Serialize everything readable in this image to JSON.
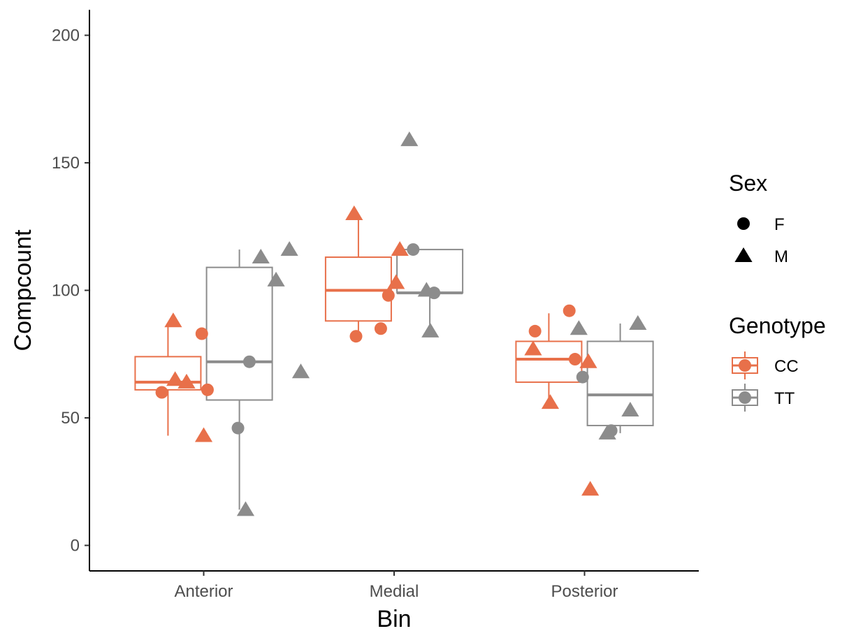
{
  "chart_data": {
    "type": "box",
    "title": "",
    "xlabel": "Bin",
    "ylabel": "Compcount",
    "categories": [
      "Anterior",
      "Medial",
      "Posterior"
    ],
    "ylim": [
      -10,
      210
    ],
    "yticks": [
      0,
      50,
      100,
      150,
      200
    ],
    "grid": false,
    "legend_position": "right",
    "colors": {
      "CC": "#E8704A",
      "TT": "#8C8C8C"
    },
    "legends": [
      {
        "title": "Sex",
        "entries": [
          {
            "label": "F",
            "shape": "circle"
          },
          {
            "label": "M",
            "shape": "triangle"
          }
        ]
      },
      {
        "title": "Genotype",
        "entries": [
          {
            "label": "CC",
            "group": "CC"
          },
          {
            "label": "TT",
            "group": "TT"
          }
        ]
      }
    ],
    "boxes": [
      {
        "category": "Anterior",
        "genotype": "CC",
        "whisker_low": 43,
        "q1": 61,
        "median": 64,
        "q3": 74,
        "whisker_high": 87
      },
      {
        "category": "Anterior",
        "genotype": "TT",
        "whisker_low": 14,
        "q1": 57,
        "median": 72,
        "q3": 109,
        "whisker_high": 116
      },
      {
        "category": "Medial",
        "genotype": "CC",
        "whisker_low": 83,
        "q1": 88,
        "median": 100,
        "q3": 113,
        "whisker_high": 129
      },
      {
        "category": "Medial",
        "genotype": "TT",
        "whisker_low": 84,
        "q1": 99,
        "median": 99,
        "q3": 116,
        "whisker_high": 116
      },
      {
        "category": "Posterior",
        "genotype": "CC",
        "whisker_low": 56,
        "q1": 64,
        "median": 73,
        "q3": 80,
        "whisker_high": 91
      },
      {
        "category": "Posterior",
        "genotype": "TT",
        "whisker_low": 44,
        "q1": 47,
        "median": 59,
        "q3": 80,
        "whisker_high": 87
      }
    ],
    "points": [
      {
        "category": "Anterior",
        "genotype": "CC",
        "sex": "M",
        "x": 0.84,
        "y": 88
      },
      {
        "category": "Anterior",
        "genotype": "CC",
        "sex": "F",
        "x": 0.99,
        "y": 83
      },
      {
        "category": "Anterior",
        "genotype": "CC",
        "sex": "M",
        "x": 0.85,
        "y": 65
      },
      {
        "category": "Anterior",
        "genotype": "CC",
        "sex": "M",
        "x": 0.91,
        "y": 64
      },
      {
        "category": "Anterior",
        "genotype": "CC",
        "sex": "F",
        "x": 0.78,
        "y": 60
      },
      {
        "category": "Anterior",
        "genotype": "CC",
        "sex": "F",
        "x": 1.02,
        "y": 61
      },
      {
        "category": "Anterior",
        "genotype": "CC",
        "sex": "M",
        "x": 1.0,
        "y": 43
      },
      {
        "category": "Anterior",
        "genotype": "TT",
        "sex": "M",
        "x": 1.3,
        "y": 113
      },
      {
        "category": "Anterior",
        "genotype": "TT",
        "sex": "M",
        "x": 1.45,
        "y": 116
      },
      {
        "category": "Anterior",
        "genotype": "TT",
        "sex": "M",
        "x": 1.38,
        "y": 104
      },
      {
        "category": "Anterior",
        "genotype": "TT",
        "sex": "F",
        "x": 1.24,
        "y": 72
      },
      {
        "category": "Anterior",
        "genotype": "TT",
        "sex": "M",
        "x": 1.51,
        "y": 68
      },
      {
        "category": "Anterior",
        "genotype": "TT",
        "sex": "F",
        "x": 1.18,
        "y": 46
      },
      {
        "category": "Anterior",
        "genotype": "TT",
        "sex": "M",
        "x": 1.22,
        "y": 14
      },
      {
        "category": "Medial",
        "genotype": "CC",
        "sex": "M",
        "x": 1.79,
        "y": 130
      },
      {
        "category": "Medial",
        "genotype": "CC",
        "sex": "M",
        "x": 2.03,
        "y": 116
      },
      {
        "category": "Medial",
        "genotype": "CC",
        "sex": "M",
        "x": 2.01,
        "y": 103
      },
      {
        "category": "Medial",
        "genotype": "CC",
        "sex": "F",
        "x": 1.97,
        "y": 98
      },
      {
        "category": "Medial",
        "genotype": "CC",
        "sex": "F",
        "x": 1.93,
        "y": 85
      },
      {
        "category": "Medial",
        "genotype": "CC",
        "sex": "F",
        "x": 1.8,
        "y": 82
      },
      {
        "category": "Medial",
        "genotype": "TT",
        "sex": "M",
        "x": 2.08,
        "y": 159
      },
      {
        "category": "Medial",
        "genotype": "TT",
        "sex": "F",
        "x": 2.1,
        "y": 116
      },
      {
        "category": "Medial",
        "genotype": "TT",
        "sex": "M",
        "x": 2.17,
        "y": 100
      },
      {
        "category": "Medial",
        "genotype": "TT",
        "sex": "F",
        "x": 2.21,
        "y": 99
      },
      {
        "category": "Medial",
        "genotype": "TT",
        "sex": "M",
        "x": 2.19,
        "y": 84
      },
      {
        "category": "Posterior",
        "genotype": "CC",
        "sex": "F",
        "x": 2.92,
        "y": 92
      },
      {
        "category": "Posterior",
        "genotype": "CC",
        "sex": "F",
        "x": 2.74,
        "y": 84
      },
      {
        "category": "Posterior",
        "genotype": "CC",
        "sex": "M",
        "x": 2.73,
        "y": 77
      },
      {
        "category": "Posterior",
        "genotype": "CC",
        "sex": "F",
        "x": 2.95,
        "y": 73
      },
      {
        "category": "Posterior",
        "genotype": "CC",
        "sex": "M",
        "x": 3.02,
        "y": 72
      },
      {
        "category": "Posterior",
        "genotype": "CC",
        "sex": "M",
        "x": 2.82,
        "y": 56
      },
      {
        "category": "Posterior",
        "genotype": "CC",
        "sex": "M",
        "x": 3.03,
        "y": 22
      },
      {
        "category": "Posterior",
        "genotype": "TT",
        "sex": "M",
        "x": 2.97,
        "y": 85
      },
      {
        "category": "Posterior",
        "genotype": "TT",
        "sex": "M",
        "x": 3.28,
        "y": 87
      },
      {
        "category": "Posterior",
        "genotype": "TT",
        "sex": "F",
        "x": 2.99,
        "y": 66
      },
      {
        "category": "Posterior",
        "genotype": "TT",
        "sex": "M",
        "x": 3.24,
        "y": 53
      },
      {
        "category": "Posterior",
        "genotype": "TT",
        "sex": "M",
        "x": 3.12,
        "y": 44
      },
      {
        "category": "Posterior",
        "genotype": "TT",
        "sex": "F",
        "x": 3.14,
        "y": 45
      }
    ]
  }
}
